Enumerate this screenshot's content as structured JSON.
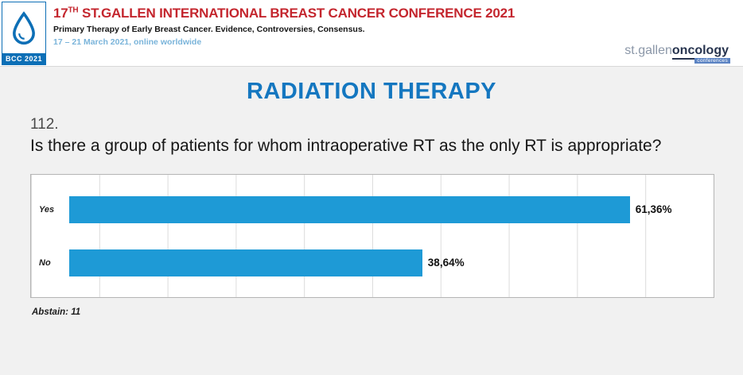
{
  "header": {
    "logo": {
      "badge_text": "BCC 2021"
    },
    "title_num": "17",
    "title_sup": "TH",
    "title_rest": " ST.GALLEN INTERNATIONAL BREAST CANCER CONFERENCE 2021",
    "subtitle": "Primary Therapy of Early Breast Cancer. Evidence, Controversies, Consensus.",
    "date_line": "17 – 21 March 2021, online worldwide",
    "brand": {
      "part1": "st.gallen",
      "part2": "oncology",
      "tag": "conferences"
    }
  },
  "main": {
    "section_title": "RADIATION THERAPY",
    "question_number": "112.",
    "question_text": "Is there a group of patients for whom intraoperative RT as the only RT is appropriate?",
    "abstain": "Abstain: 11"
  },
  "chart_data": {
    "type": "bar",
    "orientation": "horizontal",
    "categories": [
      "Yes",
      "No"
    ],
    "values": [
      61.36,
      38.64
    ],
    "value_labels": [
      "61,36%",
      "38,64%"
    ],
    "xlim": [
      0,
      70
    ],
    "grid": "vertical gridlines only, no axis tick labels",
    "legend": "none",
    "bar_color": "#1e9ad6"
  },
  "colors": {
    "title_red": "#c4262e",
    "heading_blue": "#1477c0",
    "bar_blue": "#1e9ad6",
    "date_blue": "#7ab4da",
    "logo_blue": "#0d6fb6"
  }
}
